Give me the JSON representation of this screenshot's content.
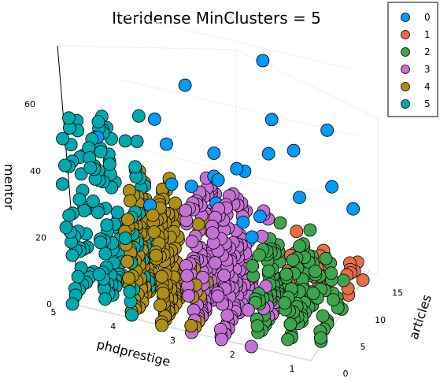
{
  "chart_data": {
    "type": "scatter3d",
    "title": "Iteridense MinClusters = 5",
    "x_axis": {
      "label": "phdprestige",
      "ticks": [
        5,
        4,
        3,
        2,
        1
      ],
      "range": [
        1,
        5
      ]
    },
    "y_axis": {
      "label": "articles",
      "ticks": [
        0,
        5,
        10,
        15
      ],
      "range": [
        0,
        17
      ]
    },
    "z_axis": {
      "label": "mentor",
      "ticks": [
        0,
        20,
        40,
        60
      ],
      "range": [
        0,
        77
      ]
    },
    "legend": {
      "placement": "top-right",
      "entries": [
        "0",
        "1",
        "2",
        "3",
        "4",
        "5"
      ]
    },
    "colors": {
      "0": "#009AFA",
      "1": "#E36F47",
      "2": "#3EA44E",
      "3": "#C371D2",
      "4": "#AC8E18",
      "5": "#00A9AD"
    },
    "clusters": [
      {
        "name": "0",
        "points": [
          [
            1.8,
            6,
            77
          ],
          [
            1.2,
            12,
            49
          ],
          [
            2.0,
            10,
            52
          ],
          [
            3.3,
            8,
            60
          ],
          [
            3.6,
            4,
            55
          ],
          [
            1.9,
            7,
            47
          ],
          [
            1.6,
            9,
            46
          ],
          [
            2.7,
            5,
            47
          ],
          [
            3.3,
            2,
            52
          ],
          [
            4.4,
            1,
            51
          ],
          [
            2.6,
            4,
            41
          ],
          [
            2.4,
            6,
            42
          ],
          [
            2.4,
            8,
            38
          ],
          [
            1.5,
            8,
            34
          ],
          [
            3.2,
            1,
            42
          ],
          [
            2.8,
            6,
            38
          ],
          [
            3.0,
            3,
            39
          ],
          [
            1.2,
            12,
            32
          ],
          [
            2.3,
            5,
            28
          ],
          [
            2.1,
            4,
            26
          ],
          [
            1.0,
            14,
            23
          ],
          [
            3.6,
            1,
            34
          ],
          [
            2.8,
            6,
            30
          ],
          [
            2.0,
            5,
            31
          ]
        ]
      },
      {
        "name": "1",
        "x": [
          1,
          2
        ],
        "y": [
          10,
          15
        ],
        "z": [
          0,
          12
        ],
        "count": 45
      },
      {
        "name": "2",
        "x": [
          1,
          2.2
        ],
        "y": [
          2,
          10
        ],
        "z": [
          0,
          22
        ],
        "count": 160
      },
      {
        "name": "3",
        "x": [
          2.2,
          3.2
        ],
        "y": [
          0,
          9
        ],
        "z": [
          0,
          36
        ],
        "count": 240
      },
      {
        "name": "4",
        "x": [
          3.2,
          4.2
        ],
        "y": [
          0,
          6
        ],
        "z": [
          0,
          36
        ],
        "count": 260
      },
      {
        "name": "5",
        "x": [
          4.0,
          5
        ],
        "y": [
          0,
          6
        ],
        "z": [
          0,
          52
        ],
        "count": 150
      }
    ]
  }
}
